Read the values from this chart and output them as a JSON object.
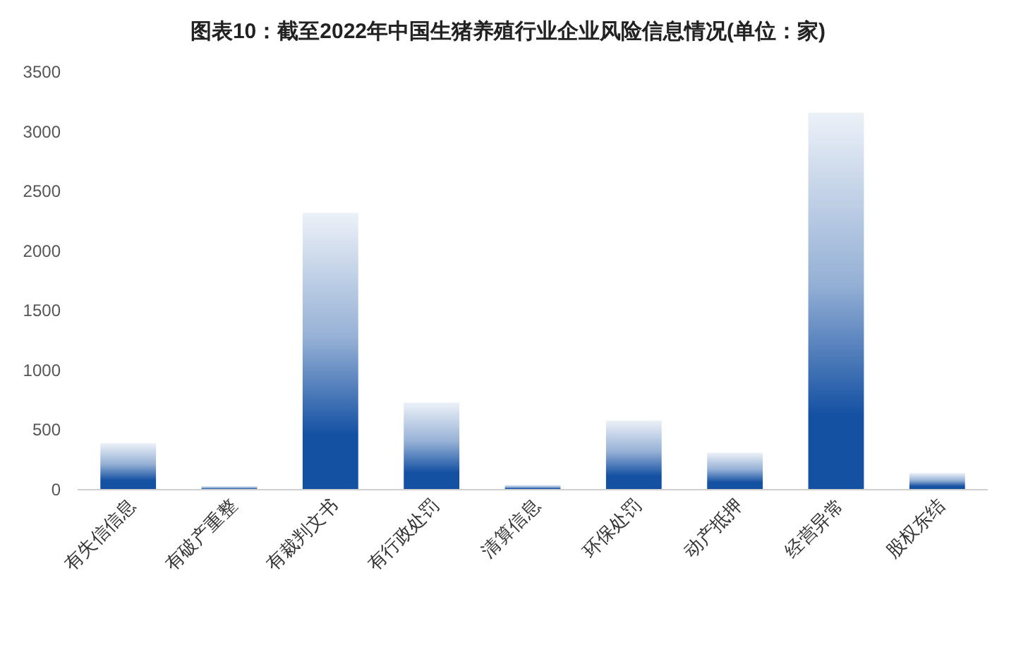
{
  "chart_data": {
    "type": "bar",
    "title": "图表10：截至2022年中国生猪养殖行业企业风险信息情况(单位：家)",
    "categories": [
      "有失信信息",
      "有破产重整",
      "有裁判文书",
      "有行政处罚",
      "清算信息",
      "环保处罚",
      "动产抵押",
      "经营异常",
      "股权东结"
    ],
    "values": [
      390,
      30,
      2320,
      730,
      40,
      580,
      310,
      3160,
      140
    ],
    "color": "#1551a3",
    "ylim": [
      0,
      3500
    ],
    "yticks": [
      0,
      500,
      1000,
      1500,
      2000,
      2500,
      3000,
      3500
    ],
    "grid": false
  }
}
